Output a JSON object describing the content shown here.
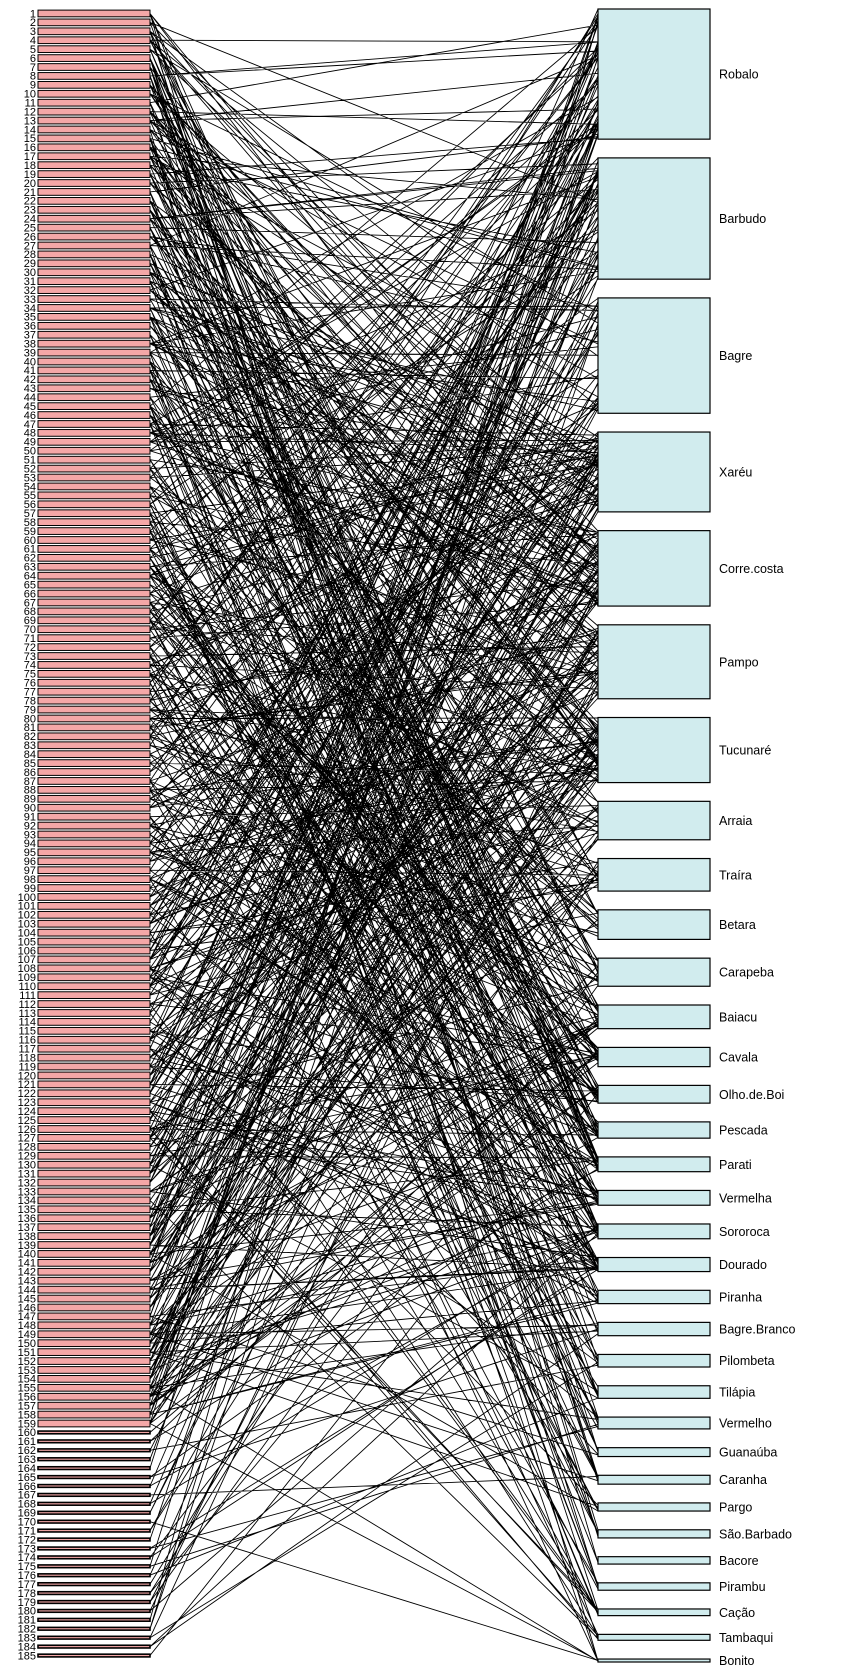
{
  "colors": {
    "lower_box": "#f4a7a7",
    "higher_box": "#d1ecee",
    "link": "#000000",
    "stroke": "#000000"
  },
  "lower_level": {
    "labels": [
      "1",
      "2",
      "3",
      "4",
      "5",
      "6",
      "7",
      "8",
      "9",
      "10",
      "11",
      "12",
      "13",
      "14",
      "15",
      "16",
      "17",
      "18",
      "19",
      "20",
      "21",
      "22",
      "23",
      "24",
      "25",
      "26",
      "27",
      "28",
      "29",
      "30",
      "31",
      "32",
      "33",
      "34",
      "35",
      "36",
      "37",
      "38",
      "39",
      "40",
      "41",
      "42",
      "43",
      "44",
      "45",
      "46",
      "47",
      "48",
      "49",
      "50",
      "51",
      "52",
      "53",
      "54",
      "55",
      "56",
      "57",
      "58",
      "59",
      "60",
      "61",
      "62",
      "63",
      "64",
      "65",
      "66",
      "67",
      "68",
      "69",
      "70",
      "71",
      "72",
      "73",
      "74",
      "75",
      "76",
      "77",
      "78",
      "79",
      "80",
      "81",
      "82",
      "83",
      "84",
      "85",
      "86",
      "87",
      "88",
      "89",
      "90",
      "91",
      "92",
      "93",
      "94",
      "95",
      "96",
      "97",
      "98",
      "99",
      "100",
      "101",
      "102",
      "103",
      "104",
      "105",
      "106",
      "107",
      "108",
      "109",
      "110",
      "111",
      "112",
      "113",
      "114",
      "115",
      "116",
      "117",
      "118",
      "119",
      "120",
      "121",
      "122",
      "123",
      "124",
      "125",
      "126",
      "127",
      "128",
      "129",
      "130",
      "131",
      "132",
      "133",
      "134",
      "135",
      "136",
      "137",
      "138",
      "139",
      "140",
      "141",
      "142",
      "143",
      "144",
      "145",
      "146",
      "147",
      "148",
      "149",
      "150",
      "151",
      "152",
      "153",
      "154",
      "155",
      "156",
      "157",
      "158",
      "159",
      "160",
      "161",
      "162",
      "163",
      "164",
      "165",
      "166",
      "167",
      "168",
      "169",
      "170",
      "171",
      "172",
      "173",
      "174",
      "175",
      "176",
      "177",
      "178",
      "179",
      "180",
      "181",
      "182",
      "183",
      "184",
      "185"
    ],
    "filled_count": 159
  },
  "higher_level": {
    "species": [
      {
        "name": "Robalo",
        "weight": 8.8
      },
      {
        "name": "Barbudo",
        "weight": 8.2
      },
      {
        "name": "Bagre",
        "weight": 7.8
      },
      {
        "name": "Xaréu",
        "weight": 5.4
      },
      {
        "name": "Corre.costa",
        "weight": 5.1
      },
      {
        "name": "Pampo",
        "weight": 5.0
      },
      {
        "name": "Tucunaré",
        "weight": 4.4
      },
      {
        "name": "Arraia",
        "weight": 2.6
      },
      {
        "name": "Traíra",
        "weight": 2.2
      },
      {
        "name": "Betara",
        "weight": 2.0
      },
      {
        "name": "Carapeba",
        "weight": 1.9
      },
      {
        "name": "Baiacu",
        "weight": 1.6
      },
      {
        "name": "Cavala",
        "weight": 1.3
      },
      {
        "name": "Olho.de.Boi",
        "weight": 1.2
      },
      {
        "name": "Pescada",
        "weight": 1.1
      },
      {
        "name": "Parati",
        "weight": 1.0
      },
      {
        "name": "Vermelha",
        "weight": 1.0
      },
      {
        "name": "Sororoca",
        "weight": 1.0
      },
      {
        "name": "Dourado",
        "weight": 0.95
      },
      {
        "name": "Piranha",
        "weight": 0.9
      },
      {
        "name": "Bagre.Branco",
        "weight": 0.9
      },
      {
        "name": "Pilombeta",
        "weight": 0.85
      },
      {
        "name": "Tilápia",
        "weight": 0.85
      },
      {
        "name": "Vermelho",
        "weight": 0.8
      },
      {
        "name": "Guanaúba",
        "weight": 0.6
      },
      {
        "name": "Caranha",
        "weight": 0.6
      },
      {
        "name": "Pargo",
        "weight": 0.55
      },
      {
        "name": "São.Barbado",
        "weight": 0.55
      },
      {
        "name": "Bacore",
        "weight": 0.5
      },
      {
        "name": "Pirambu",
        "weight": 0.5
      },
      {
        "name": "Cação",
        "weight": 0.45
      },
      {
        "name": "Tambaqui",
        "weight": 0.4
      },
      {
        "name": "Bonito",
        "weight": 0.2
      }
    ]
  }
}
